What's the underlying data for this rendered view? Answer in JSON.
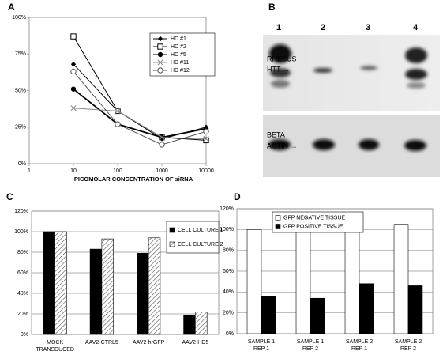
{
  "chart_data": [
    {
      "type": "line",
      "label": "A",
      "xlabel": "PICOMOLAR CONCENTRATION OF siRNA",
      "xscale": "log",
      "x": [
        10,
        100,
        1000,
        10000
      ],
      "xlim": [
        1,
        10000
      ],
      "xticks": [
        1,
        10,
        100,
        1000,
        10000
      ],
      "ylim": [
        0,
        100
      ],
      "yticks": [
        {
          "value": 0,
          "label": "0%"
        },
        {
          "value": 25,
          "label": "25%"
        },
        {
          "value": 50,
          "label": "50%"
        },
        {
          "value": 75,
          "label": "75%"
        },
        {
          "value": 100,
          "label": "100%"
        }
      ],
      "grid": false,
      "legend": "top-right",
      "series": [
        {
          "name": "HD #1",
          "color": "#000000",
          "marker": "diamond",
          "values": [
            68,
            36,
            17,
            25
          ]
        },
        {
          "name": "HD #2",
          "color": "#000000",
          "marker": "square-open",
          "values": [
            87,
            36,
            18,
            16
          ]
        },
        {
          "name": "HD #5",
          "color": "#000000",
          "marker": "circle",
          "values": [
            51,
            27,
            18,
            24
          ]
        },
        {
          "name": "HD #11",
          "color": "#888888",
          "marker": "x",
          "values": [
            38,
            36,
            18,
            17
          ]
        },
        {
          "name": "HD #12",
          "color": "#555555",
          "marker": "circle-open",
          "values": [
            63,
            27,
            13,
            22
          ]
        }
      ]
    },
    {
      "type": "bar",
      "label": "C",
      "categories": [
        [
          "MOCK",
          "TRANSDUCED"
        ],
        [
          "AAV2-CTRL5"
        ],
        [
          "AAV2-hrGFP"
        ],
        [
          "AAV2-HD5"
        ]
      ],
      "ylim": [
        0,
        120
      ],
      "yticks": [
        {
          "value": 0,
          "label": "0%"
        },
        {
          "value": 20,
          "label": "20%"
        },
        {
          "value": 40,
          "label": "40%"
        },
        {
          "value": 60,
          "label": "60%"
        },
        {
          "value": 80,
          "label": "80%"
        },
        {
          "value": 100,
          "label": "100%"
        },
        {
          "value": 120,
          "label": "120%"
        }
      ],
      "grid": true,
      "legend": "top-right",
      "series": [
        {
          "name": "CELL CULTURE 1",
          "color": "#000000",
          "values": [
            100,
            83,
            79,
            19
          ]
        },
        {
          "name": "CELL CULTURE 2",
          "color": "#ffffff",
          "pattern": "hatch",
          "values": [
            100,
            93,
            94,
            22
          ]
        }
      ]
    },
    {
      "type": "bar",
      "label": "D",
      "categories": [
        [
          "SAMPLE 1",
          "REP 1"
        ],
        [
          "SAMPLE 1",
          "REP 2"
        ],
        [
          "SAMPLE 2",
          "REP 1"
        ],
        [
          "SAMPLE 2",
          "REP 2"
        ]
      ],
      "ylim": [
        0,
        120
      ],
      "yticks": [
        {
          "value": 0,
          "label": "0%"
        },
        {
          "value": 20,
          "label": "20%"
        },
        {
          "value": 40,
          "label": "40%"
        },
        {
          "value": 60,
          "label": "60%"
        },
        {
          "value": 80,
          "label": "80%"
        },
        {
          "value": 100,
          "label": "100%"
        },
        {
          "value": 120,
          "label": "120%"
        }
      ],
      "grid": true,
      "legend": "top-left",
      "series": [
        {
          "name": "GFP NEGATIVE TISSUE",
          "color": "#ffffff",
          "values": [
            100,
            100,
            111,
            105
          ]
        },
        {
          "name": "GFP POSITIVE TISSUE",
          "color": "#000000",
          "values": [
            36,
            34,
            48,
            46
          ]
        }
      ]
    }
  ],
  "blot": {
    "label": "B",
    "lanes": [
      "1",
      "2",
      "3",
      "4"
    ],
    "top_label": [
      "RHESUS",
      "HTT →"
    ],
    "bottom_label": [
      "BETA",
      "ACTIN →"
    ]
  }
}
